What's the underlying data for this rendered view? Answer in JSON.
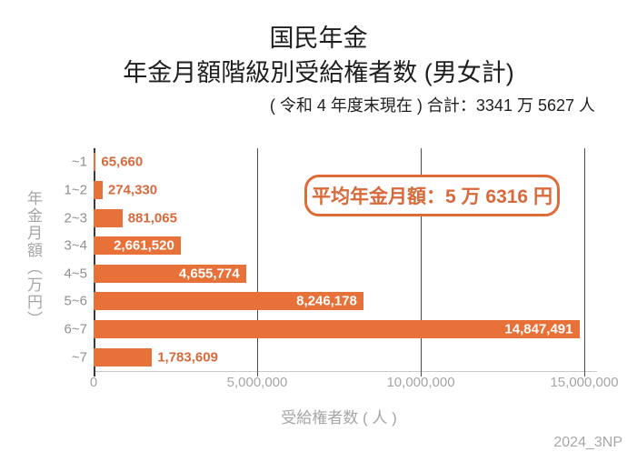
{
  "header": {
    "title_line1": "国民年金",
    "title_line2": "年金月額階級別受給権者数 (男女計)",
    "subtitle": "( 令和 4 年度末現在 ) 合計：3341 万 5627 人"
  },
  "annotation": {
    "text": "平均年金月額：5 万 6316 円"
  },
  "axes": {
    "y_title": "年金月額（万円）",
    "x_title": "受給権者数 ( 人 )",
    "x_ticks": [
      "0",
      "5,000,000",
      "10,000,000",
      "15,000,000"
    ]
  },
  "watermark": "2024_3NP",
  "colors": {
    "bar": "#e8713a",
    "label": "#d8693a",
    "accent": "#dc6b38",
    "grid": "#4a4a4a",
    "axis_dark": "#3a3a3a",
    "axis_light": "#c9c9c9",
    "muted_text": "#a6a6a6",
    "title_text": "#1f1f1f"
  },
  "chart_data": {
    "type": "bar",
    "orientation": "horizontal",
    "title": "国民年金 年金月額階級別受給権者数 (男女計)",
    "subtitle": "( 令和 4 年度末現在 ) 合計：3341 万 5627 人",
    "categories": [
      "~1",
      "1~2",
      "2~3",
      "3~4",
      "4~5",
      "5~6",
      "6~7",
      "~7"
    ],
    "values": [
      65660,
      274330,
      881065,
      2661520,
      4655774,
      8246178,
      14847491,
      1783609
    ],
    "value_labels": [
      "65,660",
      "274,330",
      "881,065",
      "2,661,520",
      "4,655,774",
      "8,246,178",
      "14,847,491",
      "1,783,609"
    ],
    "label_inside": [
      false,
      false,
      false,
      true,
      true,
      true,
      true,
      false
    ],
    "xlabel": "受給権者数 ( 人 )",
    "ylabel": "年金月額（万円）",
    "xlim": [
      0,
      15000000
    ],
    "x_tick_values": [
      0,
      5000000,
      10000000,
      15000000
    ],
    "grid": "vertical",
    "legend": "none",
    "average_annotation": "平均年金月額：5 万 6316 円",
    "total_recipients": "3341 万 5627 人"
  }
}
